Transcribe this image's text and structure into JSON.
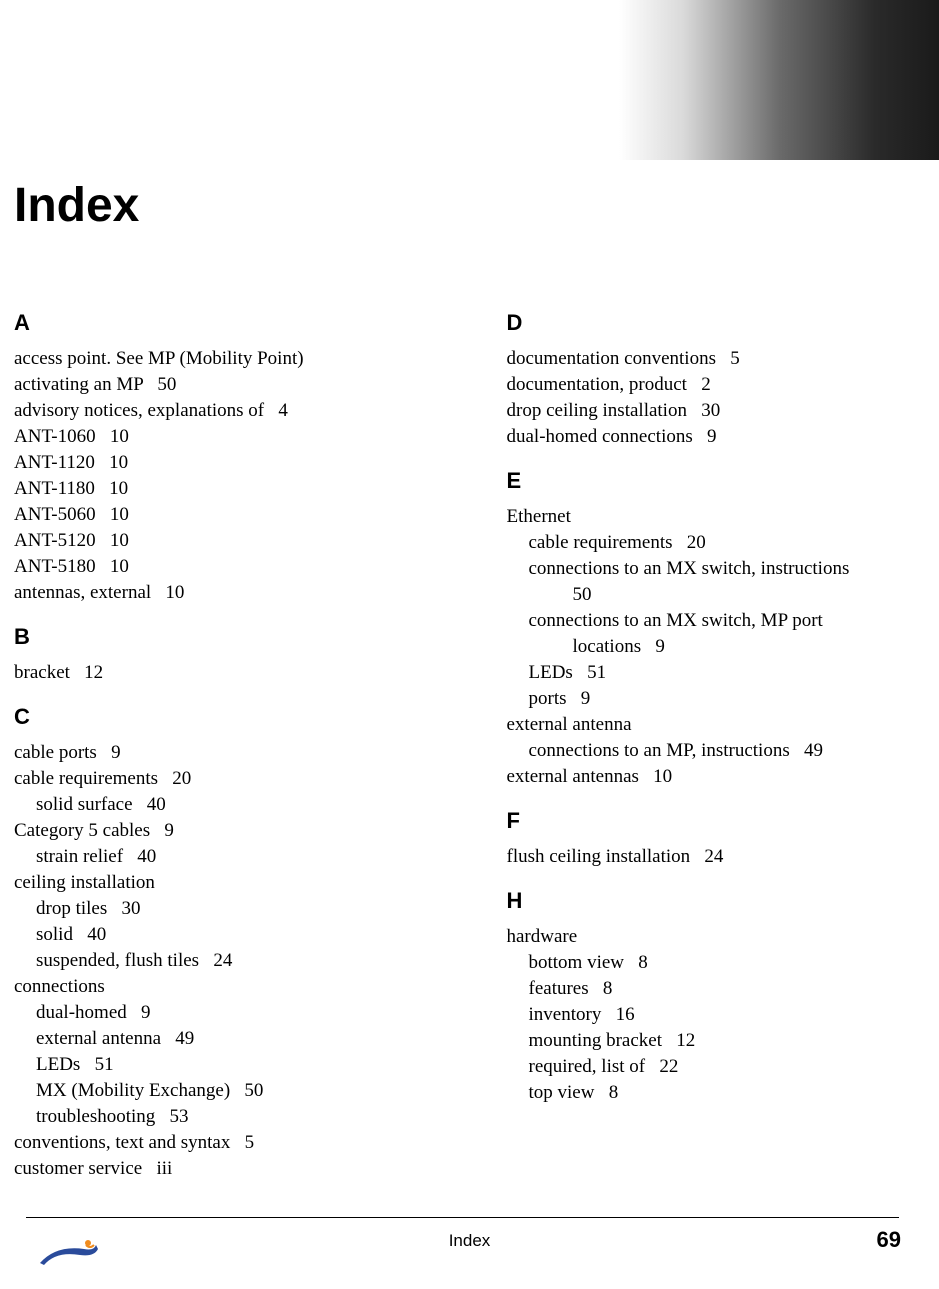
{
  "title": "Index",
  "footer_label": "Index",
  "page_number": "69",
  "left_column": [
    {
      "type": "heading",
      "text": "A"
    },
    {
      "type": "entry",
      "indent": 0,
      "text": "access point. See MP (Mobility Point)"
    },
    {
      "type": "entry",
      "indent": 0,
      "text": "activating an MP   50"
    },
    {
      "type": "entry",
      "indent": 0,
      "text": "advisory notices, explanations of   4"
    },
    {
      "type": "entry",
      "indent": 0,
      "text": "ANT-1060   10"
    },
    {
      "type": "entry",
      "indent": 0,
      "text": "ANT-1120   10"
    },
    {
      "type": "entry",
      "indent": 0,
      "text": "ANT-1180   10"
    },
    {
      "type": "entry",
      "indent": 0,
      "text": "ANT-5060   10"
    },
    {
      "type": "entry",
      "indent": 0,
      "text": "ANT-5120   10"
    },
    {
      "type": "entry",
      "indent": 0,
      "text": "ANT-5180   10"
    },
    {
      "type": "entry",
      "indent": 0,
      "text": "antennas, external   10"
    },
    {
      "type": "heading",
      "text": "B"
    },
    {
      "type": "entry",
      "indent": 0,
      "text": "bracket   12"
    },
    {
      "type": "heading",
      "text": "C"
    },
    {
      "type": "entry",
      "indent": 0,
      "text": "cable ports   9"
    },
    {
      "type": "entry",
      "indent": 0,
      "text": "cable requirements   20"
    },
    {
      "type": "entry",
      "indent": 1,
      "text": "solid surface   40"
    },
    {
      "type": "entry",
      "indent": 0,
      "text": "Category 5 cables   9"
    },
    {
      "type": "entry",
      "indent": 1,
      "text": "strain relief   40"
    },
    {
      "type": "entry",
      "indent": 0,
      "text": "ceiling installation"
    },
    {
      "type": "entry",
      "indent": 1,
      "text": "drop tiles   30"
    },
    {
      "type": "entry",
      "indent": 1,
      "text": "solid   40"
    },
    {
      "type": "entry",
      "indent": 1,
      "text": "suspended, flush tiles   24"
    },
    {
      "type": "entry",
      "indent": 0,
      "text": "connections"
    },
    {
      "type": "entry",
      "indent": 1,
      "text": "dual-homed   9"
    },
    {
      "type": "entry",
      "indent": 1,
      "text": "external antenna   49"
    },
    {
      "type": "entry",
      "indent": 1,
      "text": "LEDs   51"
    },
    {
      "type": "entry",
      "indent": 1,
      "text": "MX (Mobility Exchange)   50"
    },
    {
      "type": "entry",
      "indent": 1,
      "text": "troubleshooting   53"
    },
    {
      "type": "entry",
      "indent": 0,
      "text": "conventions, text and syntax   5"
    },
    {
      "type": "entry",
      "indent": 0,
      "text": "customer service   iii"
    }
  ],
  "right_column": [
    {
      "type": "heading",
      "text": "D"
    },
    {
      "type": "entry",
      "indent": 0,
      "text": "documentation conventions   5"
    },
    {
      "type": "entry",
      "indent": 0,
      "text": "documentation, product   2"
    },
    {
      "type": "entry",
      "indent": 0,
      "text": "drop ceiling installation   30"
    },
    {
      "type": "entry",
      "indent": 0,
      "text": "dual-homed connections   9"
    },
    {
      "type": "heading",
      "text": "E"
    },
    {
      "type": "entry",
      "indent": 0,
      "text": "Ethernet"
    },
    {
      "type": "entry",
      "indent": 1,
      "text": "cable requirements   20"
    },
    {
      "type": "entry",
      "indent": 1,
      "text": "connections to an MX switch, instructions"
    },
    {
      "type": "entry",
      "indent": 2,
      "text": "50"
    },
    {
      "type": "entry",
      "indent": 1,
      "text": "connections to an MX switch, MP port "
    },
    {
      "type": "entry",
      "indent": 2,
      "text": "locations   9"
    },
    {
      "type": "entry",
      "indent": 1,
      "text": "LEDs   51"
    },
    {
      "type": "entry",
      "indent": 1,
      "text": "ports   9"
    },
    {
      "type": "entry",
      "indent": 0,
      "text": "external antenna"
    },
    {
      "type": "entry",
      "indent": 1,
      "text": "connections to an MP, instructions   49"
    },
    {
      "type": "entry",
      "indent": 0,
      "text": "external antennas   10"
    },
    {
      "type": "heading",
      "text": "F"
    },
    {
      "type": "entry",
      "indent": 0,
      "text": "flush ceiling installation   24"
    },
    {
      "type": "heading",
      "text": "H"
    },
    {
      "type": "entry",
      "indent": 0,
      "text": "hardware"
    },
    {
      "type": "entry",
      "indent": 1,
      "text": "bottom view   8"
    },
    {
      "type": "entry",
      "indent": 1,
      "text": "features   8"
    },
    {
      "type": "entry",
      "indent": 1,
      "text": "inventory   16"
    },
    {
      "type": "entry",
      "indent": 1,
      "text": "mounting bracket   12"
    },
    {
      "type": "entry",
      "indent": 1,
      "text": "required, list of   22"
    },
    {
      "type": "entry",
      "indent": 1,
      "text": "top view   8"
    }
  ],
  "logo_colors": {
    "swoosh": "#2a4b9b",
    "accent": "#f08c1e"
  }
}
